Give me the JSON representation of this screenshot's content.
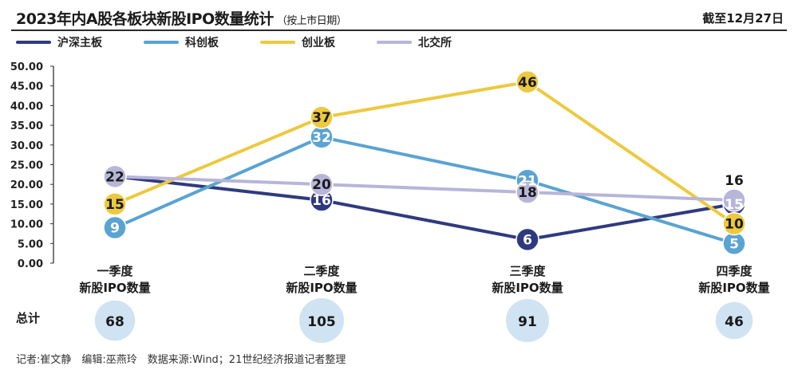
{
  "title": "2023年内A股各板块新股IPO数量统计",
  "subtitle": "（按上市日期）",
  "date_note": "截至12月27日",
  "footer": "记者:崔文静　编辑:巫燕玲　数据来源:Wind；21世纪经济报道记者整理",
  "chart_data": {
    "type": "line",
    "title": "2023年内A股各板块新股IPO数量统计",
    "categories": [
      "一季度\n新股IPO数量",
      "二季度\n新股IPO数量",
      "三季度\n新股IPO数量",
      "四季度\n新股IPO数量"
    ],
    "ylim": [
      0,
      50
    ],
    "yticks": [
      "0.00",
      "5.00",
      "10.00",
      "15.00",
      "20.00",
      "25.00",
      "30.00",
      "35.00",
      "40.00",
      "45.00",
      "50.00"
    ],
    "grid": false,
    "legend_position": "top-left",
    "series": [
      {
        "name": "沪深主板",
        "color": "#2f3a7e",
        "values": [
          22,
          16,
          6,
          15
        ]
      },
      {
        "name": "科创板",
        "color": "#5aa3d2",
        "values": [
          9,
          32,
          21,
          5
        ]
      },
      {
        "name": "创业板",
        "color": "#ecc93f",
        "values": [
          15,
          37,
          46,
          10
        ]
      },
      {
        "name": "北交所",
        "color": "#b7b5d8",
        "values": [
          22,
          20,
          18,
          16
        ]
      }
    ],
    "totals_label": "总计",
    "totals": [
      68,
      105,
      91,
      46
    ]
  }
}
